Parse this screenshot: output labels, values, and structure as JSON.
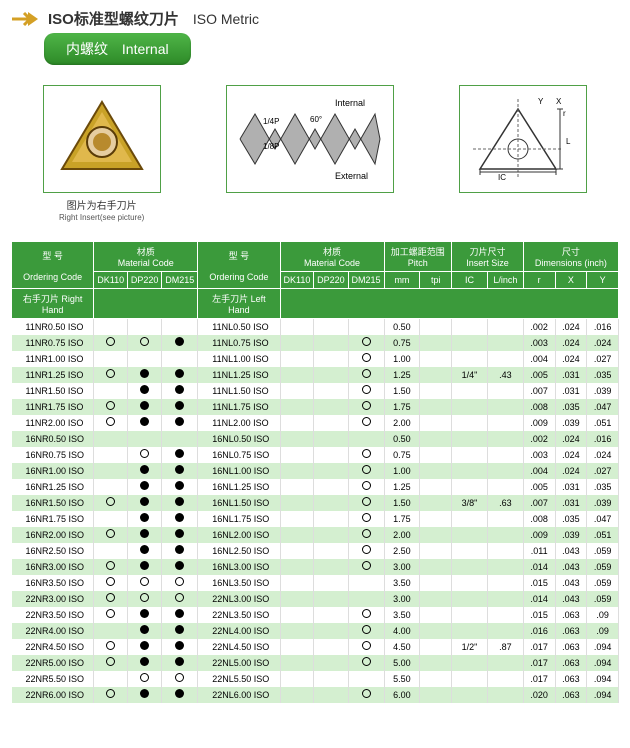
{
  "header": {
    "title_cn": "ISO标准型螺纹刀片",
    "title_en": "ISO Metric",
    "badge_cn": "内螺纹",
    "badge_en": "Internal"
  },
  "diagrams": {
    "caption1_cn": "图片为右手刀片",
    "caption1_en": "Right Insert(see picture)",
    "internal_label": "Internal",
    "external_label": "External",
    "p14": "1/4P",
    "p18": "1/8P",
    "angle": "60°"
  },
  "table": {
    "hdr": {
      "model": "型 号",
      "material": "材质",
      "ordering": "Ordering Code",
      "matcode": "Material Code",
      "rh": "右手刀片 Right Hand",
      "lh": "左手刀片 Left Hand",
      "pitch_cn": "加工螺距范围",
      "pitch": "Pitch",
      "insert_cn": "刀片尺寸",
      "insert": "Insert Size",
      "dim_cn": "尺寸",
      "dim": "Dimensions (inch)",
      "mm": "mm",
      "tpi": "tpi",
      "ic": "IC",
      "linch": "L/inch",
      "r": "r",
      "x": "X",
      "y": "Y",
      "dk110": "DK110",
      "dp220": "DP220",
      "dm215": "DM215"
    },
    "rows": [
      {
        "rh": "11NR0.50 ISO",
        "d1": "",
        "d2": "",
        "d3": "",
        "lh": "11NL0.50 ISO",
        "d4": "",
        "d5": "",
        "d6": "",
        "mm": "0.50",
        "tpi": "",
        "ic": "",
        "li": "",
        "r": ".002",
        "x": ".024",
        "y": ".016"
      },
      {
        "rh": "11NR0.75 ISO",
        "d1": "o",
        "d2": "o",
        "d3": "f",
        "lh": "11NL0.75 ISO",
        "d4": "",
        "d5": "",
        "d6": "o",
        "mm": "0.75",
        "tpi": "",
        "ic": "",
        "li": "",
        "r": ".003",
        "x": ".024",
        "y": ".024"
      },
      {
        "rh": "11NR1.00 ISO",
        "d1": "",
        "d2": "",
        "d3": "",
        "lh": "11NL1.00 ISO",
        "d4": "",
        "d5": "",
        "d6": "o",
        "mm": "1.00",
        "tpi": "",
        "ic": "",
        "li": "",
        "r": ".004",
        "x": ".024",
        "y": ".027"
      },
      {
        "rh": "11NR1.25 ISO",
        "d1": "o",
        "d2": "f",
        "d3": "f",
        "lh": "11NL1.25 ISO",
        "d4": "",
        "d5": "",
        "d6": "o",
        "mm": "1.25",
        "tpi": "",
        "ic": "1/4\"",
        "li": ".43",
        "r": ".005",
        "x": ".031",
        "y": ".035"
      },
      {
        "rh": "11NR1.50 ISO",
        "d1": "",
        "d2": "f",
        "d3": "f",
        "lh": "11NL1.50 ISO",
        "d4": "",
        "d5": "",
        "d6": "o",
        "mm": "1.50",
        "tpi": "",
        "ic": "",
        "li": "",
        "r": ".007",
        "x": ".031",
        "y": ".039"
      },
      {
        "rh": "11NR1.75 ISO",
        "d1": "o",
        "d2": "f",
        "d3": "f",
        "lh": "11NL1.75 ISO",
        "d4": "",
        "d5": "",
        "d6": "o",
        "mm": "1.75",
        "tpi": "",
        "ic": "",
        "li": "",
        "r": ".008",
        "x": ".035",
        "y": ".047"
      },
      {
        "rh": "11NR2.00 ISO",
        "d1": "o",
        "d2": "f",
        "d3": "f",
        "lh": "11NL2.00 ISO",
        "d4": "",
        "d5": "",
        "d6": "o",
        "mm": "2.00",
        "tpi": "",
        "ic": "",
        "li": "",
        "r": ".009",
        "x": ".039",
        "y": ".051"
      },
      {
        "rh": "16NR0.50 ISO",
        "d1": "",
        "d2": "",
        "d3": "",
        "lh": "16NL0.50 ISO",
        "d4": "",
        "d5": "",
        "d6": "",
        "mm": "0.50",
        "tpi": "",
        "ic": "",
        "li": "",
        "r": ".002",
        "x": ".024",
        "y": ".016"
      },
      {
        "rh": "16NR0.75 ISO",
        "d1": "",
        "d2": "o",
        "d3": "f",
        "lh": "16NL0.75 ISO",
        "d4": "",
        "d5": "",
        "d6": "o",
        "mm": "0.75",
        "tpi": "",
        "ic": "",
        "li": "",
        "r": ".003",
        "x": ".024",
        "y": ".024"
      },
      {
        "rh": "16NR1.00 ISO",
        "d1": "",
        "d2": "f",
        "d3": "f",
        "lh": "16NL1.00 ISO",
        "d4": "",
        "d5": "",
        "d6": "o",
        "mm": "1.00",
        "tpi": "",
        "ic": "",
        "li": "",
        "r": ".004",
        "x": ".024",
        "y": ".027"
      },
      {
        "rh": "16NR1.25 ISO",
        "d1": "",
        "d2": "f",
        "d3": "f",
        "lh": "16NL1.25 ISO",
        "d4": "",
        "d5": "",
        "d6": "o",
        "mm": "1.25",
        "tpi": "",
        "ic": "",
        "li": "",
        "r": ".005",
        "x": ".031",
        "y": ".035"
      },
      {
        "rh": "16NR1.50 ISO",
        "d1": "o",
        "d2": "f",
        "d3": "f",
        "lh": "16NL1.50 ISO",
        "d4": "",
        "d5": "",
        "d6": "o",
        "mm": "1.50",
        "tpi": "",
        "ic": "3/8\"",
        "li": ".63",
        "r": ".007",
        "x": ".031",
        "y": ".039"
      },
      {
        "rh": "16NR1.75 ISO",
        "d1": "",
        "d2": "f",
        "d3": "f",
        "lh": "16NL1.75 ISO",
        "d4": "",
        "d5": "",
        "d6": "o",
        "mm": "1.75",
        "tpi": "",
        "ic": "",
        "li": "",
        "r": ".008",
        "x": ".035",
        "y": ".047"
      },
      {
        "rh": "16NR2.00 ISO",
        "d1": "o",
        "d2": "f",
        "d3": "f",
        "lh": "16NL2.00 ISO",
        "d4": "",
        "d5": "",
        "d6": "o",
        "mm": "2.00",
        "tpi": "",
        "ic": "",
        "li": "",
        "r": ".009",
        "x": ".039",
        "y": ".051"
      },
      {
        "rh": "16NR2.50 ISO",
        "d1": "",
        "d2": "f",
        "d3": "f",
        "lh": "16NL2.50 ISO",
        "d4": "",
        "d5": "",
        "d6": "o",
        "mm": "2.50",
        "tpi": "",
        "ic": "",
        "li": "",
        "r": ".011",
        "x": ".043",
        "y": ".059"
      },
      {
        "rh": "16NR3.00 ISO",
        "d1": "o",
        "d2": "f",
        "d3": "f",
        "lh": "16NL3.00 ISO",
        "d4": "",
        "d5": "",
        "d6": "o",
        "mm": "3.00",
        "tpi": "",
        "ic": "",
        "li": "",
        "r": ".014",
        "x": ".043",
        "y": ".059"
      },
      {
        "rh": "16NR3.50 ISO",
        "d1": "o",
        "d2": "o",
        "d3": "o",
        "lh": "16NL3.50 ISO",
        "d4": "",
        "d5": "",
        "d6": "",
        "mm": "3.50",
        "tpi": "",
        "ic": "",
        "li": "",
        "r": ".015",
        "x": ".043",
        "y": ".059"
      },
      {
        "rh": "22NR3.00 ISO",
        "d1": "o",
        "d2": "o",
        "d3": "o",
        "lh": "22NL3.00 ISO",
        "d4": "",
        "d5": "",
        "d6": "",
        "mm": "3.00",
        "tpi": "",
        "ic": "",
        "li": "",
        "r": ".014",
        "x": ".043",
        "y": ".059"
      },
      {
        "rh": "22NR3.50 ISO",
        "d1": "o",
        "d2": "f",
        "d3": "f",
        "lh": "22NL3.50 ISO",
        "d4": "",
        "d5": "",
        "d6": "o",
        "mm": "3.50",
        "tpi": "",
        "ic": "",
        "li": "",
        "r": ".015",
        "x": ".063",
        "y": ".09"
      },
      {
        "rh": "22NR4.00 ISO",
        "d1": "",
        "d2": "f",
        "d3": "f",
        "lh": "22NL4.00 ISO",
        "d4": "",
        "d5": "",
        "d6": "o",
        "mm": "4.00",
        "tpi": "",
        "ic": "",
        "li": "",
        "r": ".016",
        "x": ".063",
        "y": ".09"
      },
      {
        "rh": "22NR4.50 ISO",
        "d1": "o",
        "d2": "f",
        "d3": "f",
        "lh": "22NL4.50 ISO",
        "d4": "",
        "d5": "",
        "d6": "o",
        "mm": "4.50",
        "tpi": "",
        "ic": "1/2\"",
        "li": ".87",
        "r": ".017",
        "x": ".063",
        "y": ".094"
      },
      {
        "rh": "22NR5.00 ISO",
        "d1": "o",
        "d2": "f",
        "d3": "f",
        "lh": "22NL5.00 ISO",
        "d4": "",
        "d5": "",
        "d6": "o",
        "mm": "5.00",
        "tpi": "",
        "ic": "",
        "li": "",
        "r": ".017",
        "x": ".063",
        "y": ".094"
      },
      {
        "rh": "22NR5.50 ISO",
        "d1": "",
        "d2": "o",
        "d3": "o",
        "lh": "22NL5.50 ISO",
        "d4": "",
        "d5": "",
        "d6": "",
        "mm": "5.50",
        "tpi": "",
        "ic": "",
        "li": "",
        "r": ".017",
        "x": ".063",
        "y": ".094"
      },
      {
        "rh": "22NR6.00 ISO",
        "d1": "o",
        "d2": "f",
        "d3": "f",
        "lh": "22NL6.00 ISO",
        "d4": "",
        "d5": "",
        "d6": "o",
        "mm": "6.00",
        "tpi": "",
        "ic": "",
        "li": "",
        "r": ".020",
        "x": ".063",
        "y": ".094"
      }
    ]
  },
  "colors": {
    "header": "#3b9a3b",
    "stripe": "#d4efd0"
  }
}
